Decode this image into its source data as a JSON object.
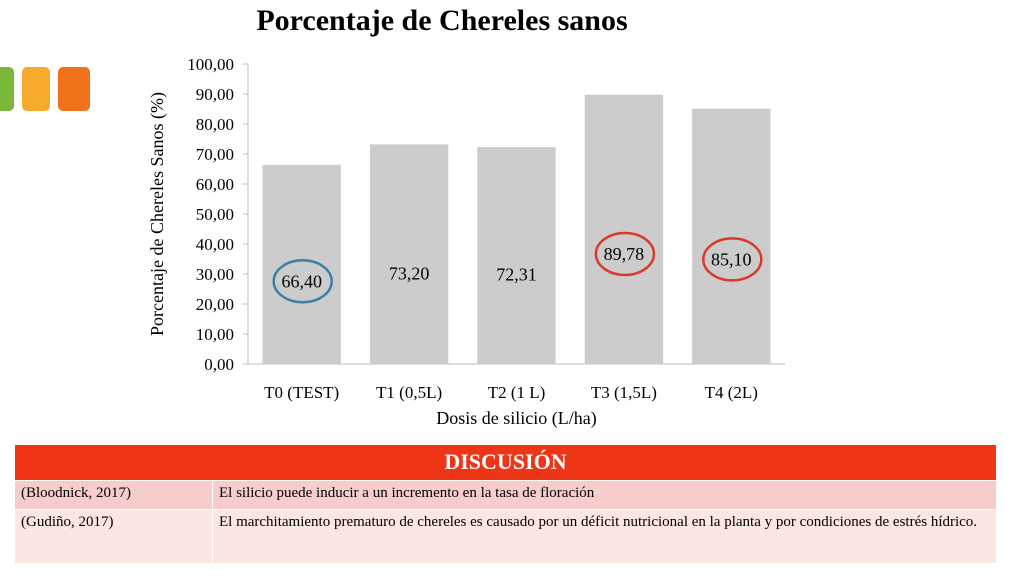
{
  "chart_data": {
    "type": "bar",
    "title": "Porcentaje de Chereles sanos",
    "xlabel": "Dosis de silicio (L/ha)",
    "ylabel": "Porcentaje de Chereles Sanos (%)",
    "categories": [
      "T0 (TEST)",
      "T1 (0,5L)",
      "T2 (1 L)",
      "T3 (1,5L)",
      "T4 (2L)"
    ],
    "values": [
      66.4,
      73.2,
      72.31,
      89.78,
      85.1
    ],
    "value_labels": [
      "66,40",
      "73,20",
      "72,31",
      "89,78",
      "85,10"
    ],
    "ylim": [
      0,
      100
    ],
    "y_ticks": [
      "0,00",
      "10,00",
      "20,00",
      "30,00",
      "40,00",
      "50,00",
      "60,00",
      "70,00",
      "80,00",
      "90,00",
      "100,00"
    ],
    "grid": false,
    "bar_color": "#cccccc",
    "highlights": [
      {
        "category": "T0 (TEST)",
        "color": "#3d7fa6"
      },
      {
        "category": "T3 (1,5L)",
        "color": "#d93a2b"
      },
      {
        "category": "T4 (2L)",
        "color": "#d93a2b"
      }
    ]
  },
  "discussion": {
    "header": "DISCUSIÓN",
    "rows": [
      {
        "cite": "(Bloodnick, 2017)",
        "text": "El silicio puede inducir a un incremento en la tasa de floración"
      },
      {
        "cite": "(Gudiño, 2017)",
        "text": "El marchitamiento prematuro de chereles es causado por un déficit nutricional en la planta y por condiciones de estrés hídrico."
      }
    ]
  },
  "colors": {
    "header_bg": "#ee3517",
    "row1_bg": "#f6cdca",
    "row2_bg": "#fbe6e4"
  }
}
